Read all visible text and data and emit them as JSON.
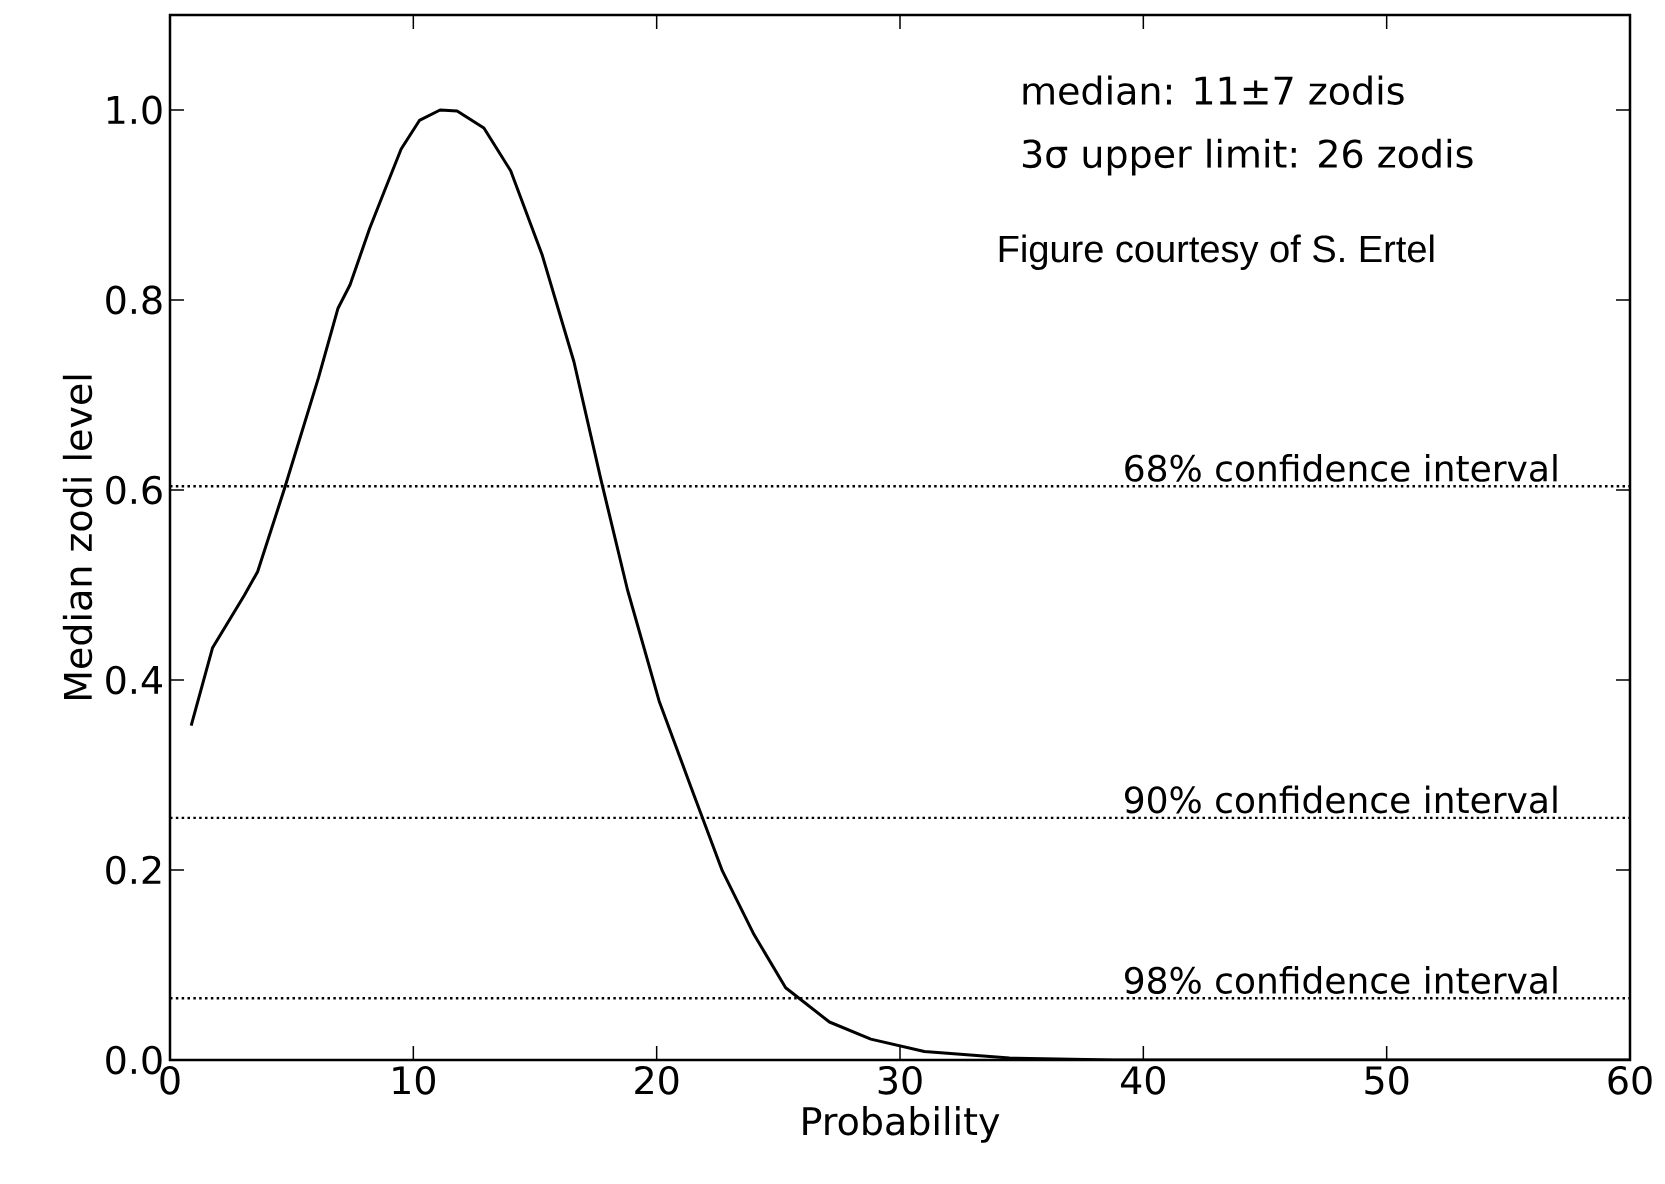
{
  "chart_data": {
    "type": "line",
    "xlabel": "Probability",
    "ylabel": "Median zodi level",
    "x": [
      0.87,
      1.75,
      3.05,
      3.6,
      4.7,
      6.1,
      6.9,
      7.4,
      8.2,
      8.8,
      9.5,
      10.25,
      11.1,
      11.8,
      12.9,
      14.0,
      15.3,
      16.6,
      17.7,
      18.8,
      20.1,
      21.4,
      22.7,
      24.0,
      25.3,
      27.1,
      28.8,
      31.0,
      34.5,
      38.8,
      43.2,
      50,
      60
    ],
    "series": [
      {
        "color": "#000000",
        "line_style": "solid",
        "values": [
          0.352,
          0.434,
          0.489,
          0.514,
          0.601,
          0.718,
          0.791,
          0.816,
          0.875,
          0.914,
          0.959,
          0.989,
          1.0,
          0.999,
          0.981,
          0.936,
          0.847,
          0.735,
          0.612,
          0.495,
          0.378,
          0.288,
          0.199,
          0.132,
          0.076,
          0.04,
          0.022,
          0.009,
          0.002,
          0.0,
          0.0,
          0.0,
          0.0
        ]
      }
    ],
    "xlim": [
      0,
      60
    ],
    "ylim": [
      0,
      1.1
    ],
    "xticks": [
      0,
      10,
      20,
      30,
      40,
      50,
      60
    ],
    "yticks": [
      {
        "value": 0,
        "label": "0.0"
      },
      {
        "value": 0.2,
        "label": "0.2"
      },
      {
        "value": 0.4,
        "label": "0.4"
      },
      {
        "value": 0.6,
        "label": "0.6"
      },
      {
        "value": 0.8,
        "label": "0.8"
      },
      {
        "value": 1.0,
        "label": "1.0"
      }
    ],
    "ref_lines": [
      {
        "axis": "y",
        "value": 0.604,
        "label": "68% confidence interval",
        "line_style": "dotted",
        "color": "#000000"
      },
      {
        "axis": "y",
        "value": 0.255,
        "label": "90% confidence interval",
        "line_style": "dotted",
        "color": "#000000"
      },
      {
        "axis": "y",
        "value": 0.065,
        "label": "98% confidence interval",
        "line_style": "dotted",
        "color": "#000000"
      }
    ],
    "annotations": [
      "median: 11±7 zodis",
      "3σ upper limit: 26 zodis",
      "Figure courtesy of S. Ertel"
    ]
  }
}
